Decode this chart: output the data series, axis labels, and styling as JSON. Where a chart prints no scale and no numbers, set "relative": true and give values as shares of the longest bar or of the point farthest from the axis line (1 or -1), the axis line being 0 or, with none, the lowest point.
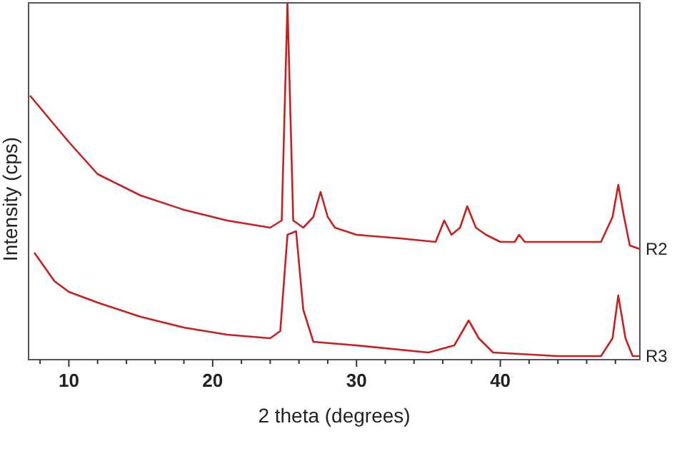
{
  "chart_data": {
    "type": "line",
    "relative": true,
    "xlabel": "2 theta (degrees)",
    "ylabel": "Intensity (cps)",
    "xlim": [
      7.2,
      49.7
    ],
    "xticks": [
      {
        "value": 8,
        "label": null
      },
      10,
      {
        "value": 12,
        "label": null
      },
      {
        "value": 14,
        "label": null
      },
      {
        "value": 16,
        "label": null
      },
      {
        "value": 18,
        "label": null
      },
      20,
      {
        "value": 22,
        "label": null
      },
      {
        "value": 24,
        "label": null
      },
      {
        "value": 26,
        "label": null
      },
      {
        "value": 28,
        "label": null
      },
      30,
      {
        "value": 32,
        "label": null
      },
      {
        "value": 34,
        "label": null
      },
      {
        "value": 36,
        "label": null
      },
      {
        "value": 38,
        "label": null
      },
      40,
      {
        "value": 42,
        "label": null
      },
      {
        "value": 44,
        "label": null
      },
      {
        "value": 46,
        "label": null
      },
      {
        "value": 48,
        "label": null
      }
    ],
    "marker": "none",
    "line_style": "solid",
    "series": [
      {
        "name": "R2",
        "color": "#c8201e",
        "x": [
          7.3,
          10,
          12,
          15,
          18,
          21,
          24,
          24.8,
          25.2,
          25.6,
          26.3,
          27,
          27.5,
          28,
          28.5,
          30,
          33,
          35.5,
          36.1,
          36.6,
          37.2,
          37.7,
          38.3,
          39,
          40,
          41,
          41.3,
          41.7,
          44,
          47,
          47.8,
          48.2,
          48.6,
          49,
          49.7
        ],
        "values": [
          0.74,
          0.61,
          0.52,
          0.46,
          0.42,
          0.39,
          0.37,
          0.39,
          1,
          0.39,
          0.37,
          0.4,
          0.47,
          0.4,
          0.37,
          0.35,
          0.34,
          0.33,
          0.39,
          0.35,
          0.37,
          0.43,
          0.37,
          0.35,
          0.33,
          0.33,
          0.35,
          0.33,
          0.33,
          0.33,
          0.4,
          0.49,
          0.4,
          0.32,
          0.31
        ]
      },
      {
        "name": "R3",
        "color": "#c8201e",
        "x": [
          7.6,
          9,
          10,
          12,
          15,
          18,
          21,
          24,
          24.7,
          25.2,
          25.8,
          26.3,
          27,
          30,
          35,
          36.8,
          37.8,
          38.5,
          39.5,
          44,
          47,
          47.8,
          48.2,
          48.7,
          49.2,
          49.7
        ],
        "values": [
          0.3,
          0.22,
          0.19,
          0.16,
          0.12,
          0.09,
          0.07,
          0.06,
          0.08,
          0.35,
          0.36,
          0.14,
          0.05,
          0.04,
          0.02,
          0.04,
          0.11,
          0.06,
          0.02,
          0.01,
          0.01,
          0.06,
          0.18,
          0.06,
          0.01,
          0.01
        ]
      }
    ]
  }
}
